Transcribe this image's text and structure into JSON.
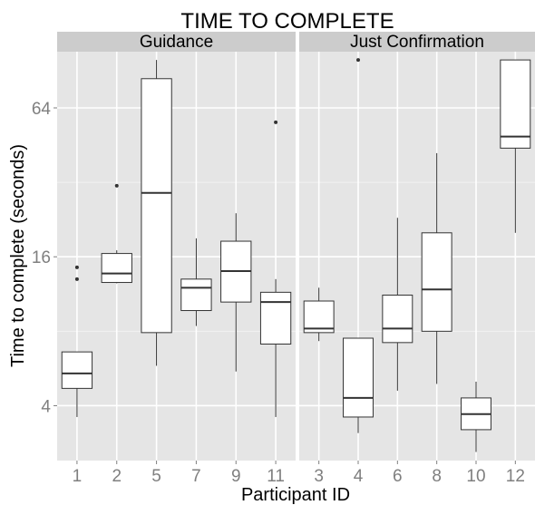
{
  "chart_data": {
    "type": "boxplot",
    "title": "TIME TO COMPLETE",
    "xlabel": "Participant ID",
    "ylabel": "Time to complete (seconds)",
    "y_scale": "log2",
    "y_ticks": [
      4,
      16,
      64
    ],
    "y_tick_labels": [
      "4",
      "16",
      "64"
    ],
    "ylim": [
      2.4,
      108
    ],
    "grid": true,
    "facets": [
      {
        "label": "Guidance",
        "categories": [
          "1",
          "2",
          "5",
          "7",
          "9",
          "11"
        ],
        "boxes": [
          {
            "id": "1",
            "min": 3.6,
            "q1": 4.7,
            "median": 5.4,
            "q3": 6.6,
            "max": 6.6,
            "outliers": [
              13,
              14.5
            ]
          },
          {
            "id": "2",
            "min": 12.5,
            "q1": 12.6,
            "median": 13.7,
            "q3": 16.5,
            "max": 17,
            "outliers": [
              31
            ]
          },
          {
            "id": "5",
            "min": 5.8,
            "q1": 7.9,
            "median": 29,
            "q3": 84,
            "max": 100,
            "outliers": []
          },
          {
            "id": "7",
            "min": 8.4,
            "q1": 9.7,
            "median": 12,
            "q3": 13,
            "max": 19,
            "outliers": []
          },
          {
            "id": "9",
            "min": 5.5,
            "q1": 10.5,
            "median": 14,
            "q3": 18.5,
            "max": 24,
            "outliers": []
          },
          {
            "id": "11",
            "min": 3.6,
            "q1": 7.1,
            "median": 10.5,
            "q3": 11.5,
            "max": 13,
            "outliers": [
              56
            ]
          }
        ]
      },
      {
        "label": "Just Confirmation",
        "categories": [
          "3",
          "4",
          "6",
          "8",
          "10",
          "12"
        ],
        "boxes": [
          {
            "id": "3",
            "min": 7.3,
            "q1": 7.9,
            "median": 8.2,
            "q3": 10.6,
            "max": 12,
            "outliers": []
          },
          {
            "id": "4",
            "min": 3.1,
            "q1": 3.6,
            "median": 4.3,
            "q3": 7.5,
            "max": 7.5,
            "outliers": [
              100
            ]
          },
          {
            "id": "6",
            "min": 4.6,
            "q1": 7.2,
            "median": 8.2,
            "q3": 11.2,
            "max": 23,
            "outliers": []
          },
          {
            "id": "8",
            "min": 4.9,
            "q1": 8,
            "median": 11.8,
            "q3": 20,
            "max": 42,
            "outliers": []
          },
          {
            "id": "10",
            "min": 2.6,
            "q1": 3.2,
            "median": 3.7,
            "q3": 4.3,
            "max": 5,
            "outliers": []
          },
          {
            "id": "12",
            "min": 20,
            "q1": 44,
            "median": 49,
            "q3": 100,
            "max": 100,
            "outliers": []
          }
        ]
      }
    ]
  },
  "colors": {
    "panel_background": "#e5e5e5",
    "strip_background": "#cccccc",
    "grid_major": "#ffffff",
    "grid_minor": "#f2f2f2",
    "box_fill": "#ffffff",
    "box_stroke": "#333333",
    "tick_text": "#7f7f7f"
  }
}
